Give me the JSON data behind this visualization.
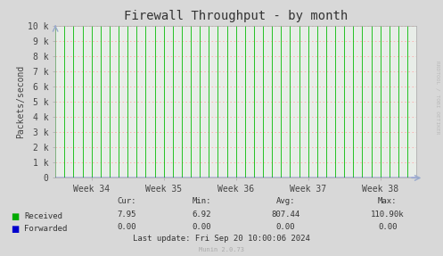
{
  "title": "Firewall Throughput - by month",
  "ylabel": "Packets/second",
  "bg_color": "#d8d8d8",
  "plot_bg_color": "#e8ede8",
  "grid_h_color": "#ffaaaa",
  "green_line_color": "#00bb00",
  "blue_line_color": "#0000cc",
  "arrow_color": "#99aacc",
  "yticks": [
    0,
    1000,
    2000,
    3000,
    4000,
    5000,
    6000,
    7000,
    8000,
    9000,
    10000
  ],
  "ytick_labels": [
    "0",
    "1 k",
    "2 k",
    "3 k",
    "4 k",
    "5 k",
    "6 k",
    "7 k",
    "8 k",
    "9 k",
    "10 k"
  ],
  "xlim": [
    0,
    5
  ],
  "ylim": [
    0,
    10000
  ],
  "week_labels": [
    "Week 34",
    "Week 35",
    "Week 36",
    "Week 37",
    "Week 38"
  ],
  "week_positions": [
    0.5,
    1.5,
    2.5,
    3.5,
    4.5
  ],
  "legend_entries": [
    {
      "label": "Received",
      "color": "#00aa00"
    },
    {
      "label": "Forwarded",
      "color": "#0000cc"
    }
  ],
  "stats": {
    "cur": {
      "received": "7.95",
      "forwarded": "0.00"
    },
    "min": {
      "received": "6.92",
      "forwarded": "0.00"
    },
    "avg": {
      "received": "807.44",
      "forwarded": "0.00"
    },
    "max": {
      "received": "110.90k",
      "forwarded": "0.00"
    }
  },
  "last_update": "Last update: Fri Sep 20 10:00:06 2024",
  "munin_version": "Munin 2.0.73",
  "rrdtool_label": "RRDTOOL / TOBI OETIKER",
  "n_green_lines": 40,
  "title_fontsize": 10,
  "axis_label_fontsize": 7,
  "tick_fontsize": 7,
  "stats_fontsize": 6.5
}
